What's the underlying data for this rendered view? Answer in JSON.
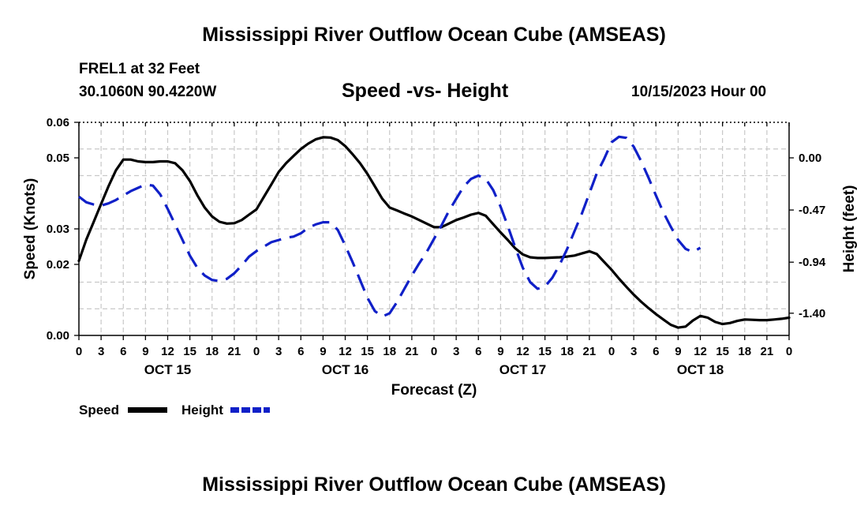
{
  "chart_data": {
    "type": "line",
    "title": "Mississippi River Outflow Ocean Cube (AMSEAS)",
    "station": "FREL1 at 32 Feet",
    "location": "30.1060N  90.4220W",
    "subtitle": "Speed -vs- Height",
    "datetime": "10/15/2023 Hour 00",
    "xlabel": "Forecast (Z)",
    "ylabel_left": "Speed (Knots)",
    "ylabel_right": "Height (feet)",
    "grid": true,
    "x_range_hours": [
      0,
      96
    ],
    "x_ticks": [
      {
        "hour": 0,
        "label": "0"
      },
      {
        "hour": 3,
        "label": "3"
      },
      {
        "hour": 6,
        "label": "6"
      },
      {
        "hour": 9,
        "label": "9"
      },
      {
        "hour": 12,
        "label": "12"
      },
      {
        "hour": 15,
        "label": "15"
      },
      {
        "hour": 18,
        "label": "18"
      },
      {
        "hour": 21,
        "label": "21"
      },
      {
        "hour": 24,
        "label": "0"
      },
      {
        "hour": 27,
        "label": "3"
      },
      {
        "hour": 30,
        "label": "6"
      },
      {
        "hour": 33,
        "label": "9"
      },
      {
        "hour": 36,
        "label": "12"
      },
      {
        "hour": 39,
        "label": "15"
      },
      {
        "hour": 42,
        "label": "18"
      },
      {
        "hour": 45,
        "label": "21"
      },
      {
        "hour": 48,
        "label": "0"
      },
      {
        "hour": 51,
        "label": "3"
      },
      {
        "hour": 54,
        "label": "6"
      },
      {
        "hour": 57,
        "label": "9"
      },
      {
        "hour": 60,
        "label": "12"
      },
      {
        "hour": 63,
        "label": "15"
      },
      {
        "hour": 66,
        "label": "18"
      },
      {
        "hour": 69,
        "label": "21"
      },
      {
        "hour": 72,
        "label": "0"
      },
      {
        "hour": 75,
        "label": "3"
      },
      {
        "hour": 78,
        "label": "6"
      },
      {
        "hour": 81,
        "label": "9"
      },
      {
        "hour": 84,
        "label": "12"
      },
      {
        "hour": 87,
        "label": "15"
      },
      {
        "hour": 90,
        "label": "18"
      },
      {
        "hour": 93,
        "label": "21"
      },
      {
        "hour": 96,
        "label": "0"
      }
    ],
    "day_labels": [
      {
        "hour": 12,
        "label": "OCT 15"
      },
      {
        "hour": 36,
        "label": "OCT 16"
      },
      {
        "hour": 60,
        "label": "OCT 17"
      },
      {
        "hour": 84,
        "label": "OCT 18"
      }
    ],
    "y_left": {
      "range": [
        0,
        0.06
      ],
      "ticks": [
        {
          "value": 0,
          "label": "0.00"
        },
        {
          "value": 0.02,
          "label": "0.02"
        },
        {
          "value": 0.03,
          "label": "0.03"
        },
        {
          "value": 0.05,
          "label": "0.05"
        },
        {
          "value": 0.06,
          "label": "0.06"
        }
      ],
      "grid_values": [
        0.0075,
        0.015,
        0.03,
        0.045,
        0.0525
      ]
    },
    "y_right": {
      "range": [
        -1.6,
        0.32
      ],
      "ticks": [
        {
          "value": 0.0,
          "label": "0.00"
        },
        {
          "value": -0.47,
          "label": "-0.47"
        },
        {
          "value": -0.94,
          "label": "-0.94"
        },
        {
          "value": -1.4,
          "label": "-1.40"
        }
      ]
    },
    "series": [
      {
        "name": "Speed",
        "axis": "left",
        "color": "#000000",
        "dash": "solid",
        "points": [
          [
            0,
            0.021
          ],
          [
            1,
            0.027
          ],
          [
            2,
            0.032
          ],
          [
            3,
            0.037
          ],
          [
            4,
            0.042
          ],
          [
            5,
            0.0465
          ],
          [
            6,
            0.0495
          ],
          [
            7,
            0.0495
          ],
          [
            8,
            0.049
          ],
          [
            9,
            0.0488
          ],
          [
            10,
            0.0488
          ],
          [
            11,
            0.049
          ],
          [
            12,
            0.049
          ],
          [
            13,
            0.0485
          ],
          [
            14,
            0.0465
          ],
          [
            15,
            0.0435
          ],
          [
            16,
            0.0395
          ],
          [
            17,
            0.036
          ],
          [
            18,
            0.0335
          ],
          [
            19,
            0.032
          ],
          [
            20,
            0.0315
          ],
          [
            21,
            0.0316
          ],
          [
            22,
            0.0325
          ],
          [
            23,
            0.034
          ],
          [
            24,
            0.0355
          ],
          [
            25,
            0.039
          ],
          [
            26,
            0.0425
          ],
          [
            27,
            0.046
          ],
          [
            28,
            0.0485
          ],
          [
            29,
            0.0505
          ],
          [
            30,
            0.0525
          ],
          [
            31,
            0.054
          ],
          [
            32,
            0.0552
          ],
          [
            33,
            0.0558
          ],
          [
            34,
            0.0557
          ],
          [
            35,
            0.055
          ],
          [
            36,
            0.0533
          ],
          [
            37,
            0.051
          ],
          [
            38,
            0.0485
          ],
          [
            39,
            0.0455
          ],
          [
            40,
            0.042
          ],
          [
            41,
            0.0385
          ],
          [
            42,
            0.036
          ],
          [
            43,
            0.0352
          ],
          [
            44,
            0.0343
          ],
          [
            45,
            0.0335
          ],
          [
            46,
            0.0325
          ],
          [
            47,
            0.0315
          ],
          [
            48,
            0.0305
          ],
          [
            49,
            0.0305
          ],
          [
            50,
            0.0315
          ],
          [
            51,
            0.0325
          ],
          [
            52,
            0.0332
          ],
          [
            53,
            0.034
          ],
          [
            54,
            0.0345
          ],
          [
            55,
            0.0337
          ],
          [
            56,
            0.0313
          ],
          [
            57,
            0.029
          ],
          [
            58,
            0.0268
          ],
          [
            59,
            0.0245
          ],
          [
            60,
            0.0228
          ],
          [
            61,
            0.022
          ],
          [
            62,
            0.0218
          ],
          [
            63,
            0.0218
          ],
          [
            64,
            0.0219
          ],
          [
            65,
            0.022
          ],
          [
            66,
            0.0222
          ],
          [
            67,
            0.0225
          ],
          [
            68,
            0.0231
          ],
          [
            69,
            0.0237
          ],
          [
            70,
            0.0229
          ],
          [
            71,
            0.0207
          ],
          [
            72,
            0.0185
          ],
          [
            73,
            0.016
          ],
          [
            74,
            0.0137
          ],
          [
            75,
            0.0115
          ],
          [
            76,
            0.0095
          ],
          [
            77,
            0.0077
          ],
          [
            78,
            0.006
          ],
          [
            79,
            0.0045
          ],
          [
            80,
            0.003
          ],
          [
            81,
            0.0022
          ],
          [
            82,
            0.0025
          ],
          [
            83,
            0.0042
          ],
          [
            84,
            0.0055
          ],
          [
            85,
            0.005
          ],
          [
            86,
            0.0038
          ],
          [
            87,
            0.0032
          ],
          [
            88,
            0.0035
          ],
          [
            89,
            0.0041
          ],
          [
            90,
            0.0045
          ],
          [
            91,
            0.0044
          ],
          [
            92,
            0.0043
          ],
          [
            93,
            0.0043
          ],
          [
            94,
            0.0045
          ],
          [
            95,
            0.0047
          ],
          [
            96,
            0.005
          ]
        ]
      },
      {
        "name": "Height",
        "axis": "right",
        "color": "#1020c8",
        "dash": "dashed",
        "points": [
          [
            0,
            -0.35
          ],
          [
            1,
            -0.4
          ],
          [
            2,
            -0.42
          ],
          [
            3,
            -0.43
          ],
          [
            4,
            -0.41
          ],
          [
            5,
            -0.38
          ],
          [
            6,
            -0.34
          ],
          [
            7,
            -0.3
          ],
          [
            8,
            -0.27
          ],
          [
            9,
            -0.24
          ],
          [
            10,
            -0.25
          ],
          [
            11,
            -0.33
          ],
          [
            12,
            -0.46
          ],
          [
            13,
            -0.6
          ],
          [
            14,
            -0.74
          ],
          [
            15,
            -0.88
          ],
          [
            16,
            -0.99
          ],
          [
            17,
            -1.06
          ],
          [
            18,
            -1.1
          ],
          [
            19,
            -1.11
          ],
          [
            20,
            -1.09
          ],
          [
            21,
            -1.04
          ],
          [
            22,
            -0.97
          ],
          [
            23,
            -0.89
          ],
          [
            24,
            -0.84
          ],
          [
            25,
            -0.8
          ],
          [
            26,
            -0.76
          ],
          [
            27,
            -0.74
          ],
          [
            28,
            -0.72
          ],
          [
            29,
            -0.71
          ],
          [
            30,
            -0.68
          ],
          [
            31,
            -0.63
          ],
          [
            32,
            -0.6
          ],
          [
            33,
            -0.58
          ],
          [
            34,
            -0.58
          ],
          [
            35,
            -0.65
          ],
          [
            36,
            -0.79
          ],
          [
            37,
            -0.94
          ],
          [
            38,
            -1.1
          ],
          [
            39,
            -1.26
          ],
          [
            40,
            -1.38
          ],
          [
            41,
            -1.43
          ],
          [
            42,
            -1.4
          ],
          [
            43,
            -1.3
          ],
          [
            44,
            -1.18
          ],
          [
            45,
            -1.06
          ],
          [
            46,
            -0.95
          ],
          [
            47,
            -0.85
          ],
          [
            48,
            -0.73
          ],
          [
            49,
            -0.61
          ],
          [
            50,
            -0.48
          ],
          [
            51,
            -0.37
          ],
          [
            52,
            -0.26
          ],
          [
            53,
            -0.19
          ],
          [
            54,
            -0.16
          ],
          [
            55,
            -0.19
          ],
          [
            56,
            -0.29
          ],
          [
            57,
            -0.44
          ],
          [
            58,
            -0.62
          ],
          [
            59,
            -0.81
          ],
          [
            60,
            -0.99
          ],
          [
            61,
            -1.12
          ],
          [
            62,
            -1.18
          ],
          [
            63,
            -1.16
          ],
          [
            64,
            -1.08
          ],
          [
            65,
            -0.96
          ],
          [
            66,
            -0.82
          ],
          [
            67,
            -0.66
          ],
          [
            68,
            -0.5
          ],
          [
            69,
            -0.32
          ],
          [
            70,
            -0.14
          ],
          [
            71,
            -0.01
          ],
          [
            72,
            0.14
          ],
          [
            73,
            0.19
          ],
          [
            74,
            0.18
          ],
          [
            75,
            0.1
          ],
          [
            76,
            -0.03
          ],
          [
            77,
            -0.18
          ],
          [
            78,
            -0.34
          ],
          [
            79,
            -0.49
          ],
          [
            80,
            -0.62
          ],
          [
            81,
            -0.74
          ],
          [
            82,
            -0.82
          ],
          [
            83,
            -0.85
          ],
          [
            84,
            -0.81
          ]
        ]
      }
    ]
  },
  "legend": [
    {
      "label": "Speed",
      "color": "#000000"
    },
    {
      "label": "Height",
      "color": "#1020c8"
    }
  ],
  "footer_title": "Mississippi River Outflow Ocean Cube (AMSEAS)"
}
